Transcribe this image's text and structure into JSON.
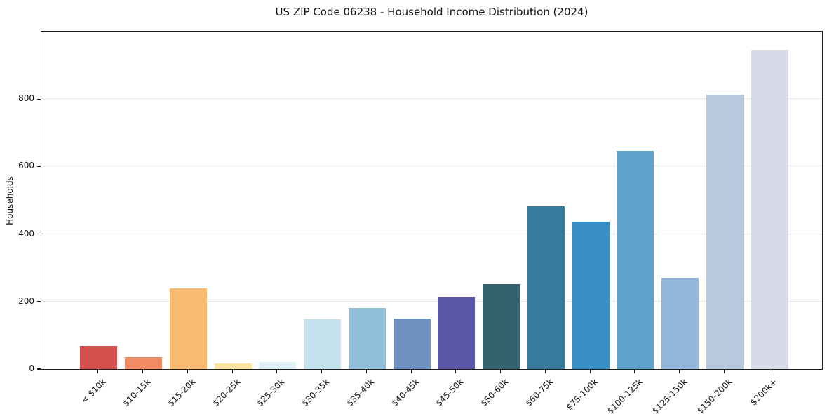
{
  "title": "US ZIP Code 06238 - Household Income Distribution (2024)",
  "chart_data": {
    "type": "bar",
    "title": "US ZIP Code 06238 - Household Income Distribution (2024)",
    "xlabel": "",
    "ylabel": "Households",
    "categories": [
      "< $10k",
      "$10-15k",
      "$15-20k",
      "$20-25k",
      "$25-30k",
      "$30-35k",
      "$35-40k",
      "$40-45k",
      "$45-50k",
      "$50-60k",
      "$60-75k",
      "$75-100k",
      "$100-125k",
      "$125-150k",
      "$150-200k",
      "$200k+"
    ],
    "values": [
      68,
      36,
      240,
      17,
      21,
      147,
      180,
      150,
      214,
      251,
      483,
      436,
      646,
      271,
      813,
      947
    ],
    "bar_colors": [
      "#d4504e",
      "#f28a64",
      "#f9ba72",
      "#fae2a0",
      "#dff0f6",
      "#c3e1ed",
      "#92c0dc",
      "#6d92c1",
      "#5a57a7",
      "#35616f",
      "#38799e",
      "#3890c4",
      "#5ea3c9",
      "#91b6d9",
      "#b7c9de",
      "#d7dae7"
    ],
    "yticks": [
      0,
      200,
      400,
      600,
      800
    ],
    "ylim": [
      0,
      1000
    ],
    "grid": "horizontal-only",
    "grid_color": "#e7e7e7",
    "spine_color": "#1a1a1a",
    "background": "#ffffff",
    "legend": "none"
  }
}
